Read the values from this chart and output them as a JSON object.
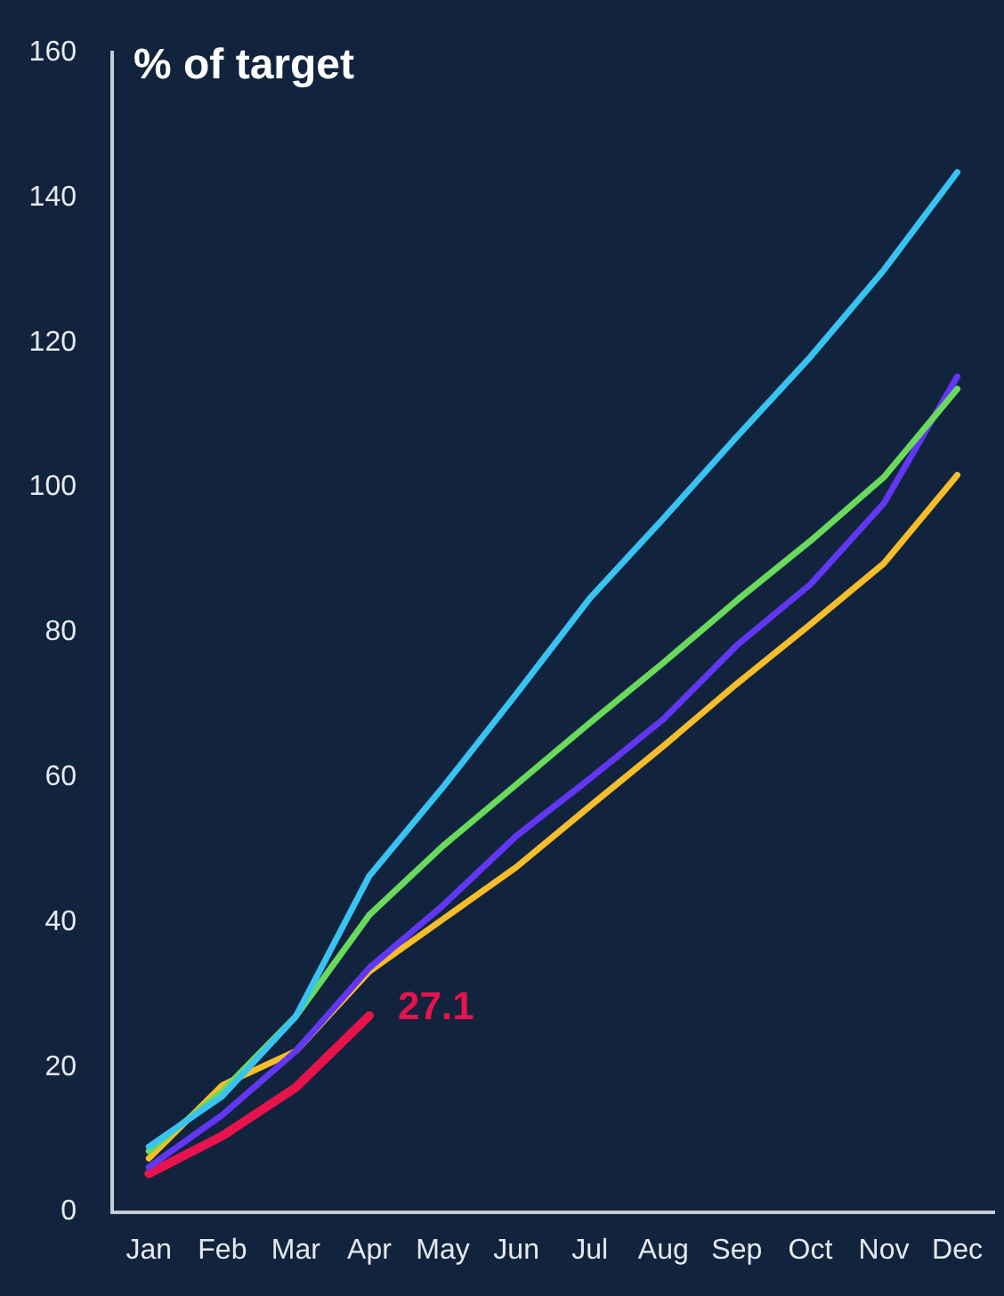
{
  "chart_data": {
    "type": "line",
    "title": "% of target",
    "categories": [
      "Jan",
      "Feb",
      "Mar",
      "Apr",
      "May",
      "Jun",
      "Jul",
      "Aug",
      "Sep",
      "Oct",
      "Nov",
      "Dec"
    ],
    "series": [
      {
        "color": "#38c3f2",
        "values": [
          9,
          16,
          27,
          46.4,
          58.6,
          71.5,
          84.7,
          95.7,
          107,
          118,
          130,
          143.5
        ]
      },
      {
        "color": "#6ada5c",
        "values": [
          8.4,
          16.7,
          27,
          41,
          50.5,
          59,
          67.5,
          75.8,
          84.4,
          92.6,
          101.4,
          113.6
        ]
      },
      {
        "color": "#6236f5",
        "values": [
          6.2,
          13.4,
          22.2,
          33.7,
          42.3,
          51.9,
          59.8,
          68,
          78.2,
          86.6,
          97.8,
          115.3
        ]
      },
      {
        "color": "#f7bd2a",
        "values": [
          7.4,
          17.5,
          22.2,
          33.2,
          40.4,
          47.6,
          56,
          64.3,
          72.9,
          81.1,
          89.5,
          101.7
        ]
      },
      {
        "color": "#e8134c",
        "values": [
          5.3,
          10.5,
          17.2,
          27.1,
          null,
          null,
          null,
          null,
          null,
          null,
          null,
          null
        ],
        "value_labels": [
          null,
          null,
          null,
          "27.1",
          null,
          null,
          null,
          null,
          null,
          null,
          null,
          null
        ]
      }
    ],
    "ylim": [
      0,
      160
    ],
    "yticks": [
      0,
      20,
      40,
      60,
      80,
      100,
      120,
      140,
      160
    ],
    "grid": false,
    "legend": false,
    "marker": "none",
    "line_style": "solid"
  }
}
